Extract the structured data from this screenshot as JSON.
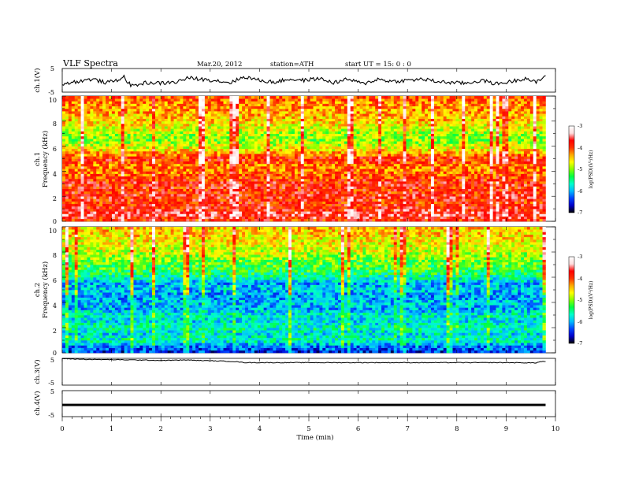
{
  "header": {
    "title": "VLF  Spectra",
    "date": "Mar.20, 2012",
    "station": "station=ATH",
    "start": "start  UT  =    15: 0  : 0"
  },
  "x_axis": {
    "label": "Time  (min)",
    "range": [
      0,
      10
    ],
    "ticks": [
      "0",
      "1",
      "2",
      "3",
      "4",
      "5",
      "6",
      "7",
      "8",
      "9",
      "10"
    ]
  },
  "panels": {
    "ch1_wave": {
      "ylabel": "ch.1(V)",
      "ticks": [
        "5",
        "-5"
      ]
    },
    "ch1_spec": {
      "ylabel": "ch.1\nFrequency  (kHz)",
      "ylabel_ch": "ch.1",
      "ylabel_freq": "Frequency  (kHz)",
      "ticks": [
        "10",
        "8",
        "6",
        "4",
        "2",
        "0"
      ]
    },
    "ch2_spec": {
      "ylabel_ch": "ch.2",
      "ylabel_freq": "Frequency  (kHz)",
      "ticks": [
        "10",
        "8",
        "6",
        "4",
        "2",
        "0"
      ]
    },
    "ch3_wave": {
      "ylabel": "ch.3(V)",
      "ticks": [
        "5",
        "-5"
      ]
    },
    "ch4_wave": {
      "ylabel": "ch.4(V)",
      "ticks": [
        "5",
        "-5"
      ]
    }
  },
  "colorbar": {
    "label": "log(PSD)(V²/Hz)",
    "ticks": [
      "-3",
      "-4",
      "-5",
      "-6",
      "-7"
    ],
    "range": [
      -7,
      -3
    ],
    "colors": [
      "#000000",
      "#0000cc",
      "#0044ff",
      "#00bbff",
      "#00ffcc",
      "#00ff44",
      "#88ff00",
      "#ffff00",
      "#ffaa00",
      "#ff3300",
      "#ff0000",
      "#ffdddd",
      "#ffffff"
    ]
  },
  "chart_data": [
    {
      "type": "line",
      "panel": "ch.1(V)",
      "xlabel": "Time  (min)",
      "ylabel": "ch.1(V)",
      "xlim": [
        0,
        9.8
      ],
      "ylim": [
        -5,
        5
      ],
      "x": [
        0,
        0.3,
        0.6,
        0.9,
        1.1,
        1.25,
        1.4,
        1.7,
        2.0,
        2.3,
        2.55,
        2.8,
        3.1,
        3.4,
        3.7,
        4.0,
        4.3,
        4.6,
        4.9,
        5.2,
        5.5,
        5.8,
        6.1,
        6.4,
        6.7,
        7.0,
        7.3,
        7.6,
        7.9,
        8.2,
        8.5,
        8.8,
        9.1,
        9.4,
        9.6,
        9.8
      ],
      "y": [
        -1.5,
        -0.5,
        0.5,
        -1.0,
        0.0,
        1.5,
        -2.5,
        -1.0,
        -1.2,
        -0.8,
        1.0,
        0.5,
        0.0,
        -1.0,
        1.5,
        0.0,
        -0.8,
        0.5,
        0.0,
        0.8,
        -1.0,
        0.5,
        -1.5,
        0.5,
        -0.5,
        0.0,
        0.5,
        -0.5,
        -1.0,
        -1.2,
        0.0,
        -1.5,
        -0.5,
        1.0,
        -1.0,
        1.8
      ]
    },
    {
      "type": "heatmap",
      "panel": "ch.1 spectrogram",
      "xlabel": "Time  (min)",
      "ylabel": "Frequency  (kHz)",
      "xlim": [
        0,
        9.8
      ],
      "ylim": [
        0,
        10
      ],
      "color_label": "log(PSD)(V²/Hz)",
      "color_range": [
        -7,
        -3
      ],
      "freq_khz": [
        0,
        0.5,
        1,
        1.5,
        2,
        2.5,
        3,
        3.5,
        4,
        4.5,
        5,
        5.5,
        6,
        6.5,
        7,
        7.5,
        8,
        8.5,
        9,
        9.5,
        10
      ],
      "mean_log_psd": [
        -4.0,
        -3.6,
        -3.8,
        -3.9,
        -3.8,
        -3.9,
        -3.8,
        -4.0,
        -4.2,
        -4.2,
        -3.8,
        -4.4,
        -4.8,
        -5.0,
        -4.9,
        -4.7,
        -4.5,
        -4.4,
        -4.3,
        -4.2,
        -4.0
      ]
    },
    {
      "type": "heatmap",
      "panel": "ch.2 spectrogram",
      "xlabel": "Time  (min)",
      "ylabel": "Frequency  (kHz)",
      "xlim": [
        0,
        9.8
      ],
      "ylim": [
        0,
        10
      ],
      "color_label": "log(PSD)(V²/Hz)",
      "color_range": [
        -7,
        -3
      ],
      "freq_khz": [
        0,
        0.5,
        1,
        1.5,
        2,
        2.5,
        3,
        3.5,
        4,
        4.5,
        5,
        5.5,
        6,
        6.5,
        7,
        7.5,
        8,
        8.5,
        9,
        9.5,
        10
      ],
      "mean_log_psd": [
        -6.5,
        -6.2,
        -5.6,
        -5.8,
        -5.6,
        -5.8,
        -5.7,
        -6.0,
        -5.9,
        -6.1,
        -5.9,
        -6.0,
        -5.6,
        -5.3,
        -5.2,
        -5.0,
        -4.8,
        -4.7,
        -4.6,
        -4.5,
        -4.5
      ]
    },
    {
      "type": "line",
      "panel": "ch.3(V)",
      "xlabel": "Time  (min)",
      "ylabel": "ch.3(V)",
      "xlim": [
        0,
        9.8
      ],
      "ylim": [
        -5,
        5
      ],
      "x": [
        0,
        0.5,
        1.0,
        1.5,
        2.0,
        2.5,
        2.8,
        3.2,
        3.5,
        3.7,
        4.0,
        5.0,
        6.0,
        7.0,
        8.0,
        9.0,
        9.6,
        9.7,
        9.8
      ],
      "y": [
        4.9,
        4.6,
        4.5,
        4.4,
        4.2,
        4.4,
        4.2,
        4.0,
        3.8,
        3.4,
        3.4,
        3.4,
        3.4,
        3.4,
        3.4,
        3.4,
        3.3,
        3.8,
        3.8
      ]
    },
    {
      "type": "line",
      "panel": "ch.4(V)",
      "xlabel": "Time  (min)",
      "ylabel": "ch.4(V)",
      "xlim": [
        0,
        9.8
      ],
      "ylim": [
        -5,
        5
      ],
      "x": [
        0,
        9.8
      ],
      "y": [
        -0.5,
        -0.5
      ]
    }
  ]
}
